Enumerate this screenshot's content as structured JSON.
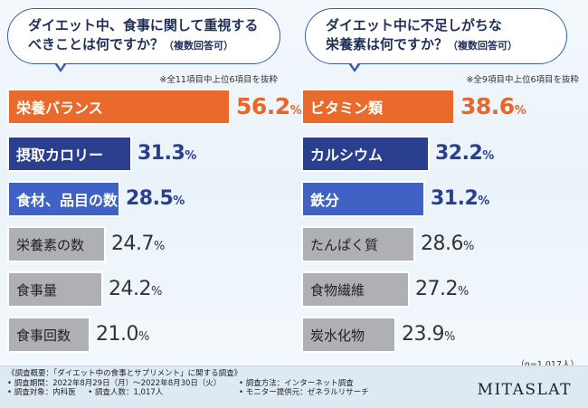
{
  "charts": [
    {
      "type": "bar",
      "question_line1": "ダイエット中、食事に関して重視する",
      "question_line2": "べきことは何ですか？",
      "question_sub": "（複数回答可）",
      "note": "※全11項目中上位6項目を抜粋",
      "categories": [
        "栄養バランス",
        "摂取カロリー",
        "食材、品目の数",
        "栄養素の数",
        "食事量",
        "食事回数"
      ],
      "values": [
        56.2,
        31.3,
        28.5,
        24.7,
        24.2,
        21.0
      ],
      "labels": [
        "56.2",
        "31.3",
        "28.5",
        "24.7",
        "24.2",
        "21.0"
      ],
      "styles": [
        "hi",
        "mid",
        "mid2",
        "gray",
        "gray",
        "gray"
      ]
    },
    {
      "type": "bar",
      "question_line1": "ダイエット中に不足しがちな",
      "question_line2": "栄養素は何ですか？",
      "question_sub": "（複数回答可）",
      "note": "※全9項目中上位6項目を抜粋",
      "categories": [
        "ビタミン類",
        "カルシウム",
        "鉄分",
        "たんぱく質",
        "食物繊維",
        "炭水化物"
      ],
      "values": [
        38.6,
        32.2,
        31.2,
        28.6,
        27.2,
        23.9
      ],
      "labels": [
        "38.6",
        "32.2",
        "31.2",
        "28.6",
        "27.2",
        "23.9"
      ],
      "styles": [
        "hi",
        "mid",
        "mid2",
        "gray",
        "gray",
        "gray"
      ]
    }
  ],
  "chart_data": [
    {
      "type": "bar",
      "title": "ダイエット中、食事に関して重視するべきことは何ですか？（複数回答可）",
      "categories": [
        "栄養バランス",
        "摂取カロリー",
        "食材、品目の数",
        "栄養素の数",
        "食事量",
        "食事回数"
      ],
      "values": [
        56.2,
        31.3,
        28.5,
        24.7,
        24.2,
        21.0
      ],
      "unit": "%",
      "orientation": "horizontal"
    },
    {
      "type": "bar",
      "title": "ダイエット中に不足しがちな栄養素は何ですか？（複数回答可）",
      "categories": [
        "ビタミン類",
        "カルシウム",
        "鉄分",
        "たんぱく質",
        "食物繊維",
        "炭水化物"
      ],
      "values": [
        38.6,
        32.2,
        31.2,
        28.6,
        27.2,
        23.9
      ],
      "unit": "%",
      "orientation": "horizontal"
    }
  ],
  "pct_symbol": "%",
  "n_size": "（n=1,017人）",
  "survey": {
    "title": "《調査概要：「ダイエット中の食事とサプリメント」に関する調査》",
    "period": "• 調査期間：2022年8月29日（月）～2022年8月30日（火）",
    "method": "• 調査方法：インターネット調査",
    "target": "• 調査対象：内科医",
    "respondents": "• 調査人数：1,017人",
    "provider": "• モニター提供元：ゼネラルリサーチ"
  },
  "logo": "MITASLAT"
}
